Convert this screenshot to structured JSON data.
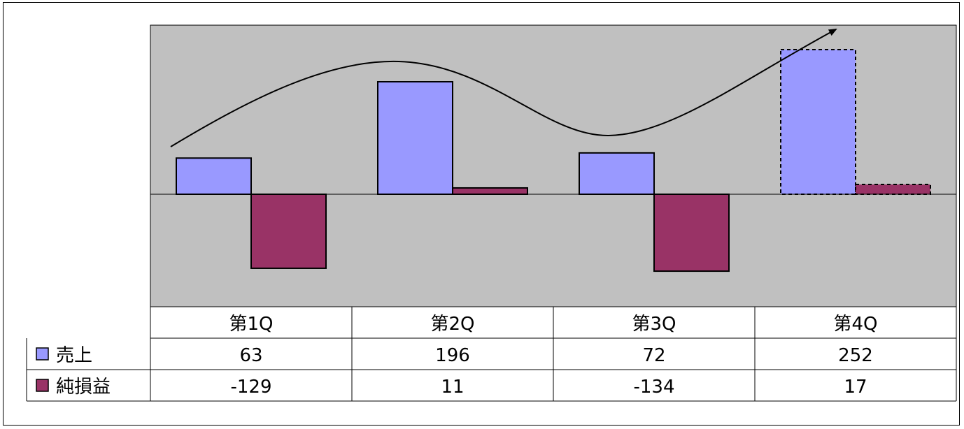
{
  "chart_data": {
    "type": "bar",
    "categories": [
      "第1Q",
      "第2Q",
      "第3Q",
      "第4Q"
    ],
    "series": [
      {
        "name": "売上",
        "values": [
          63,
          196,
          72,
          252
        ],
        "color": "#9999ff"
      },
      {
        "name": "純損益",
        "values": [
          -129,
          11,
          -134,
          17
        ],
        "color": "#993366"
      }
    ],
    "ylim": [
      -200,
      300
    ],
    "grid": false,
    "legend": "data-table-left",
    "plot_background": "#c0c0c0",
    "trend_arrow": "rising curve over quarters, ending with arrow at 第4Q",
    "highlighted_category": "第4Q"
  }
}
